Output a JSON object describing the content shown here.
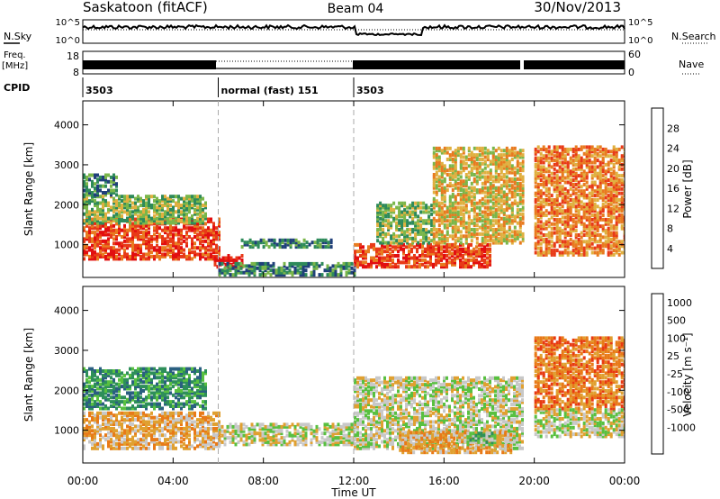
{
  "header": {
    "station": "Saskatoon (fitACF)",
    "beam": "Beam 04",
    "date": "30/Nov/2013"
  },
  "noise_panel": {
    "left_label": "N.Sky",
    "left_ticks": [
      "10^5",
      "10^0"
    ],
    "right_ticks": [
      "10^5",
      "10^0"
    ],
    "right_label": "N.Search"
  },
  "freq_panel": {
    "left_label_1": "Freq.",
    "left_label_2": "[MHz]",
    "left_ticks": [
      "18",
      "8"
    ],
    "right_ticks": [
      "60",
      "0"
    ],
    "right_label": "Nave"
  },
  "cpid": {
    "label": "CPID",
    "segments": [
      {
        "label": "3503",
        "start_hour": 0
      },
      {
        "label": "normal (fast) 151",
        "start_hour": 6
      },
      {
        "label": "3503",
        "start_hour": 12
      }
    ]
  },
  "time_axis": {
    "label": "Time UT",
    "ticks": [
      "00:00",
      "04:00",
      "08:00",
      "12:00",
      "16:00",
      "20:00",
      "00:00"
    ],
    "start_hour": 0,
    "end_hour": 24,
    "gap_hour": 19.6
  },
  "power_panel": {
    "ylabel": "Slant Range [km]",
    "yticks": [
      "1000",
      "2000",
      "3000",
      "4000"
    ],
    "ylim": [
      180,
      4600
    ],
    "colorbar_label": "Power [dB]",
    "colorbar_ticks": [
      "4",
      "8",
      "12",
      "16",
      "20",
      "24",
      "28"
    ],
    "colors": [
      "#1a2ce0",
      "#20407a",
      "#2e8a5a",
      "#7ab64a",
      "#e0b040",
      "#e87b20",
      "#e83a18",
      "#e20e10"
    ]
  },
  "velocity_panel": {
    "ylabel": "Slant Range [km]",
    "yticks": [
      "1000",
      "2000",
      "3000",
      "4000"
    ],
    "ylim": [
      180,
      4600
    ],
    "colorbar_label": "Velocity [m s⁻¹]",
    "colorbar_ticks": [
      "1000",
      "500",
      "100",
      "25",
      "-25",
      "-100",
      "-500",
      "-1000"
    ],
    "colors": [
      "#2a3fd0",
      "#2a5f80",
      "#2e8f5a",
      "#58c040",
      "#c8c8c8",
      "#e0a030",
      "#e87a18",
      "#e83a12",
      "#e00c0c"
    ]
  },
  "chart_data": {
    "type": "heatmap",
    "description_source": "SuperDARN range-time plot",
    "power_regions": [
      {
        "t0": 0.0,
        "t1": 6.0,
        "r0": 600,
        "r1": 1600,
        "level": 6
      },
      {
        "t0": 0.0,
        "t1": 5.5,
        "r0": 1500,
        "r1": 2200,
        "level": 3
      },
      {
        "t0": 0.0,
        "t1": 1.5,
        "r0": 2200,
        "r1": 2700,
        "level": 2
      },
      {
        "t0": 5.8,
        "t1": 7.0,
        "r0": 400,
        "r1": 700,
        "level": 7
      },
      {
        "t0": 7.0,
        "t1": 11.0,
        "r0": 900,
        "r1": 1100,
        "level": 2
      },
      {
        "t0": 6.0,
        "t1": 12.0,
        "r0": 200,
        "r1": 500,
        "level": 2
      },
      {
        "t0": 12.0,
        "t1": 18.0,
        "r0": 400,
        "r1": 1000,
        "level": 6
      },
      {
        "t0": 13.0,
        "t1": 15.5,
        "r0": 1000,
        "r1": 2000,
        "level": 3
      },
      {
        "t0": 15.5,
        "t1": 19.5,
        "r0": 1000,
        "r1": 3400,
        "level": 4
      },
      {
        "t0": 20.0,
        "t1": 24.0,
        "r0": 700,
        "r1": 3400,
        "level": 5
      }
    ],
    "velocity_regions": [
      {
        "t0": 0.0,
        "t1": 5.5,
        "r0": 1500,
        "r1": 2500,
        "level": 2
      },
      {
        "t0": 0.0,
        "t1": 6.0,
        "r0": 500,
        "r1": 1400,
        "level": 5
      },
      {
        "t0": 6.0,
        "t1": 12.0,
        "r0": 600,
        "r1": 1100,
        "level": 4
      },
      {
        "t0": 12.0,
        "t1": 19.5,
        "r0": 500,
        "r1": 2300,
        "level": 4
      },
      {
        "t0": 14.0,
        "t1": 19.0,
        "r0": 400,
        "r1": 900,
        "level": 5
      },
      {
        "t0": 17.0,
        "t1": 18.2,
        "r0": 600,
        "r1": 900,
        "level": 3
      },
      {
        "t0": 20.0,
        "t1": 24.0,
        "r0": 800,
        "r1": 1500,
        "level": 4
      },
      {
        "t0": 20.0,
        "t1": 24.0,
        "r0": 1500,
        "r1": 3300,
        "level": 6
      }
    ]
  }
}
